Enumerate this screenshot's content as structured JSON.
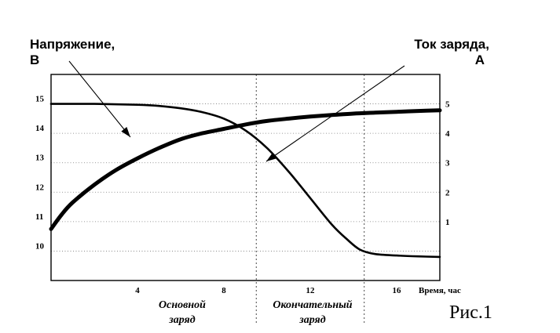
{
  "chart_data": {
    "type": "line",
    "x_range": [
      0,
      18
    ],
    "x_ticks": [
      "4",
      "8",
      "12",
      "16"
    ],
    "xlabel": "Время, час",
    "y_left": {
      "label_line1": "Напряжение,",
      "label_line2": "В",
      "range": [
        9,
        16
      ],
      "ticks": [
        "10",
        "11",
        "12",
        "13",
        "14",
        "15"
      ]
    },
    "y_right": {
      "label_line1": "Ток заряда,",
      "label_line2": "А",
      "range": [
        -1,
        6
      ],
      "ticks": [
        "1",
        "2",
        "3",
        "4",
        "5"
      ]
    },
    "series": [
      {
        "axis": "left",
        "stroke": "thick",
        "points": [
          [
            0,
            10.75
          ],
          [
            0.5,
            11.25
          ],
          [
            1,
            11.65
          ],
          [
            2,
            12.25
          ],
          [
            3,
            12.75
          ],
          [
            4,
            13.15
          ],
          [
            5,
            13.5
          ],
          [
            6,
            13.8
          ],
          [
            7,
            14.0
          ],
          [
            8,
            14.15
          ],
          [
            9,
            14.3
          ],
          [
            10,
            14.42
          ],
          [
            11,
            14.5
          ],
          [
            12,
            14.57
          ],
          [
            13,
            14.62
          ],
          [
            14,
            14.67
          ],
          [
            15,
            14.7
          ],
          [
            16,
            14.73
          ],
          [
            17,
            14.76
          ],
          [
            18,
            14.78
          ]
        ]
      },
      {
        "axis": "right",
        "stroke": "thin",
        "points": [
          [
            0,
            5.0
          ],
          [
            2,
            5.0
          ],
          [
            4,
            4.97
          ],
          [
            5,
            4.93
          ],
          [
            6,
            4.85
          ],
          [
            7,
            4.72
          ],
          [
            8,
            4.5
          ],
          [
            9,
            4.1
          ],
          [
            10,
            3.5
          ],
          [
            11,
            2.7
          ],
          [
            12,
            1.8
          ],
          [
            13,
            0.9
          ],
          [
            13.7,
            0.4
          ],
          [
            14.3,
            0.05
          ],
          [
            15,
            -0.1
          ],
          [
            16,
            -0.15
          ],
          [
            17,
            -0.18
          ],
          [
            18,
            -0.2
          ]
        ]
      }
    ],
    "phase_dividers_x": [
      9.5,
      14.5
    ],
    "phases": [
      {
        "line1": "Основной",
        "line2": "заряд"
      },
      {
        "line1": "Окончательный",
        "line2": "заряд"
      }
    ],
    "grid": "dotted horizontal"
  },
  "figure_label": "Рис.1"
}
